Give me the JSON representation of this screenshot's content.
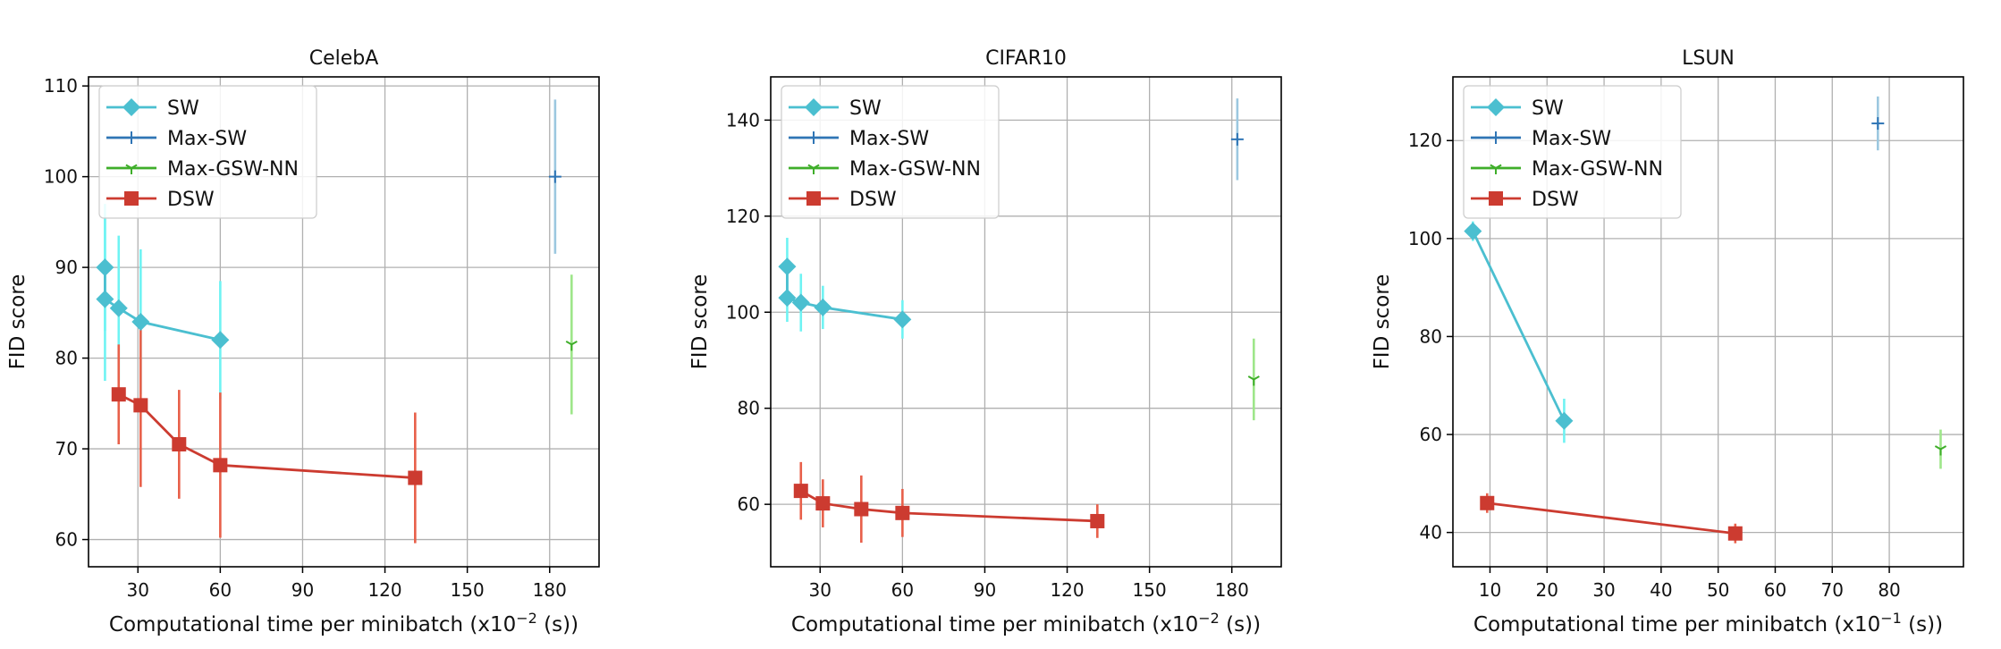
{
  "colors": {
    "sw_line": "#4bbfd0",
    "sw_err": "#6ff3f3",
    "maxsw_line": "#2f75b5",
    "maxsw_err": "#9cc8e0",
    "gsw_line": "#3fae2a",
    "gsw_err": "#9ee68a",
    "dsw_line": "#cc3b30",
    "dsw_err": "#e8604a",
    "grid": "#b0b0b0"
  },
  "chart_data": [
    {
      "type": "scatter",
      "title": "CelebA",
      "xlabel": "Computational time per minibatch (x10",
      "xlabel_exp": "−2",
      "xlabel_tail": " (s))",
      "ylabel": "FID score",
      "xlim": [
        12,
        198
      ],
      "ylim": [
        57,
        111
      ],
      "xticks": [
        30,
        60,
        90,
        120,
        150,
        180
      ],
      "yticks": [
        60,
        70,
        80,
        90,
        100,
        110
      ],
      "grid": true,
      "legend_position": "upper-left",
      "series": [
        {
          "name": "SW",
          "marker": "diamond",
          "line": true,
          "points": [
            {
              "x": 18,
              "y": 90.0,
              "err": 7
            },
            {
              "x": 18,
              "y": 86.5,
              "err": 9
            },
            {
              "x": 23,
              "y": 85.5,
              "err": 8
            },
            {
              "x": 31,
              "y": 84.0,
              "err": 8
            },
            {
              "x": 60,
              "y": 82.0,
              "err": 6.5
            }
          ]
        },
        {
          "name": "Max-SW",
          "marker": "plus",
          "line": true,
          "points": [
            {
              "x": 182,
              "y": 100.0,
              "err": 8.5
            }
          ]
        },
        {
          "name": "Max-GSW-NN",
          "marker": "tri",
          "line": true,
          "points": [
            {
              "x": 188,
              "y": 81.5,
              "err": 7.7
            }
          ]
        },
        {
          "name": "DSW",
          "marker": "square",
          "line": true,
          "points": [
            {
              "x": 23,
              "y": 76.0,
              "err": 5.5
            },
            {
              "x": 31,
              "y": 74.8,
              "err": 9
            },
            {
              "x": 45,
              "y": 70.5,
              "err": 6
            },
            {
              "x": 60,
              "y": 68.2,
              "err": 8
            },
            {
              "x": 131,
              "y": 66.8,
              "err": 7.2
            }
          ]
        }
      ]
    },
    {
      "type": "scatter",
      "title": "CIFAR10",
      "xlabel": "Computational time per minibatch (x10",
      "xlabel_exp": "−2",
      "xlabel_tail": " (s))",
      "ylabel": "FID score",
      "xlim": [
        12,
        198
      ],
      "ylim": [
        47,
        149
      ],
      "xticks": [
        30,
        60,
        90,
        120,
        150,
        180
      ],
      "yticks": [
        60,
        80,
        100,
        120,
        140
      ],
      "grid": true,
      "legend_position": "upper-left",
      "series": [
        {
          "name": "SW",
          "marker": "diamond",
          "line": true,
          "points": [
            {
              "x": 18,
              "y": 109.5,
              "err": 6
            },
            {
              "x": 18,
              "y": 103.0,
              "err": 5
            },
            {
              "x": 23,
              "y": 102.0,
              "err": 6
            },
            {
              "x": 31,
              "y": 101.0,
              "err": 4.5
            },
            {
              "x": 60,
              "y": 98.5,
              "err": 4
            }
          ]
        },
        {
          "name": "Max-SW",
          "marker": "plus",
          "line": true,
          "points": [
            {
              "x": 182,
              "y": 136.0,
              "err": 8.5
            }
          ]
        },
        {
          "name": "Max-GSW-NN",
          "marker": "tri",
          "line": true,
          "points": [
            {
              "x": 188,
              "y": 86.0,
              "err": 8.5
            }
          ]
        },
        {
          "name": "DSW",
          "marker": "square",
          "line": true,
          "points": [
            {
              "x": 23,
              "y": 62.8,
              "err": 6
            },
            {
              "x": 31,
              "y": 60.2,
              "err": 5
            },
            {
              "x": 45,
              "y": 59.0,
              "err": 7
            },
            {
              "x": 60,
              "y": 58.2,
              "err": 5
            },
            {
              "x": 131,
              "y": 56.5,
              "err": 3.5
            }
          ]
        }
      ]
    },
    {
      "type": "scatter",
      "title": "LSUN",
      "xlabel": "Computational time per minibatch (x10",
      "xlabel_exp": "−1",
      "xlabel_tail": " (s))",
      "ylabel": "FID score",
      "xlim": [
        3.5,
        93
      ],
      "ylim": [
        33,
        133
      ],
      "xticks": [
        10,
        20,
        30,
        40,
        50,
        60,
        70,
        80
      ],
      "yticks": [
        40,
        60,
        80,
        100,
        120
      ],
      "grid": true,
      "legend_position": "upper-left",
      "series": [
        {
          "name": "SW",
          "marker": "diamond",
          "line": true,
          "points": [
            {
              "x": 7,
              "y": 101.5,
              "err": 2
            },
            {
              "x": 23,
              "y": 62.8,
              "err": 4.5
            }
          ]
        },
        {
          "name": "Max-SW",
          "marker": "plus",
          "line": true,
          "points": [
            {
              "x": 78,
              "y": 123.5,
              "err": 5.5
            }
          ]
        },
        {
          "name": "Max-GSW-NN",
          "marker": "tri",
          "line": true,
          "points": [
            {
              "x": 89,
              "y": 57.0,
              "err": 4
            }
          ]
        },
        {
          "name": "DSW",
          "marker": "square",
          "line": true,
          "points": [
            {
              "x": 9.5,
              "y": 46.0,
              "err": 2
            },
            {
              "x": 53,
              "y": 39.8,
              "err": 2
            }
          ]
        }
      ]
    }
  ]
}
